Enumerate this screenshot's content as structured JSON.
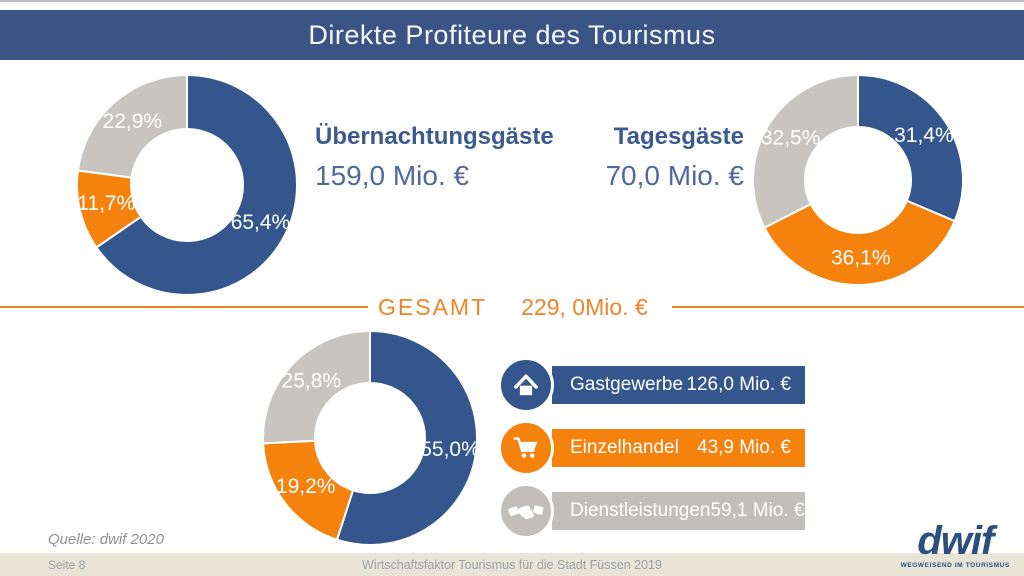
{
  "title_bar": {
    "title": "Direkte Profiteure des Tourismus"
  },
  "colors": {
    "blue": "#35568C",
    "orange": "#F5820D",
    "gray": "#C8C5C1",
    "title_bar_blue": "#3A5585",
    "accent_orange": "#EE8526",
    "footer_beige": "#E8E4D8"
  },
  "captions": {
    "overnight": {
      "label": "Übernachtungsgäste",
      "value": "159,0 Mio. €"
    },
    "day": {
      "label": "Tagesgäste",
      "value": "70,0 Mio. €"
    }
  },
  "gesamt": {
    "label": "GESAMT",
    "value": "229, 0Mio. €"
  },
  "chart_data": [
    {
      "type": "pie",
      "title": "Übernachtungsgäste",
      "total_value": "159,0 Mio. €",
      "legend_position": "none",
      "slices": [
        {
          "label": "65,4%",
          "value": 65.4,
          "color": "#35568C"
        },
        {
          "label": "11,7%",
          "value": 11.7,
          "color": "#F5820D"
        },
        {
          "label": "22,9%",
          "value": 22.9,
          "color": "#C8C5C1"
        }
      ]
    },
    {
      "type": "pie",
      "title": "Tagesgäste",
      "total_value": "70,0 Mio. €",
      "legend_position": "none",
      "slices": [
        {
          "label": "31,4%",
          "value": 31.4,
          "color": "#35568C"
        },
        {
          "label": "36,1%",
          "value": 36.1,
          "color": "#F5820D"
        },
        {
          "label": "32,5%",
          "value": 32.5,
          "color": "#C8C5C1"
        }
      ]
    },
    {
      "type": "pie",
      "title": "GESAMT",
      "total_value": "229, 0Mio. €",
      "legend_position": "right",
      "slices": [
        {
          "label": "55,0%",
          "value": 55.0,
          "color": "#35568C"
        },
        {
          "label": "19,2%",
          "value": 19.2,
          "color": "#F5820D"
        },
        {
          "label": "25,8%",
          "value": 25.8,
          "color": "#C8C5C1"
        }
      ]
    }
  ],
  "legend": {
    "items": [
      {
        "icon": "house-icon",
        "label": "Gastgewerbe",
        "value": "126,0 Mio. €",
        "color": "#35568C"
      },
      {
        "icon": "cart-icon",
        "label": "Einzelhandel",
        "value": "43,9 Mio. €",
        "color": "#F5820D"
      },
      {
        "icon": "handshake-icon",
        "label": "Dienstleistungen",
        "value": "59,1 Mio. €",
        "color": "#C2BFBA"
      }
    ]
  },
  "source_note": "Quelle: dwif 2020",
  "footer": {
    "page": "Seite 8",
    "center": "Wirtschaftsfaktor Tourismus für die Stadt Füssen 2019"
  },
  "logo": {
    "text": "dwif",
    "tagline": "WEGWEISEND IM TOURISMUS"
  }
}
